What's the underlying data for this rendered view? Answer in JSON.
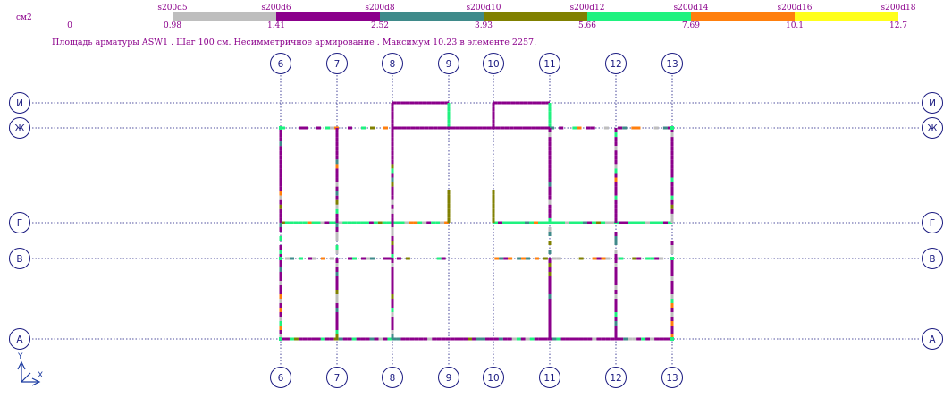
{
  "units_label": "см2",
  "legend": {
    "top_labels": [
      "s200d5",
      "s200d6",
      "s200d8",
      "s200d10",
      "s200d12",
      "s200d14",
      "s200d16",
      "s200d18"
    ],
    "bottom_labels": [
      "0",
      "0.98",
      "1.41",
      "2.52",
      "3.93",
      "5.66",
      "7.69",
      "10.1",
      "12.7"
    ],
    "colors": [
      "#bebebe",
      "#8b008b",
      "#3f8a8a",
      "#808000",
      "#1ff27f",
      "#ff7f0d",
      "#ffff1b"
    ],
    "label_color": "#8b008b"
  },
  "caption": "Площадь арматуры ASW1 . Шаг 100 см. Несимметричное армирование . Максимум 10.23 в элементе 2257.",
  "grid": {
    "columns": [
      "6",
      "7",
      "8",
      "9",
      "10",
      "11",
      "12",
      "13"
    ],
    "rows": [
      "И",
      "Ж",
      "Г",
      "В",
      "А"
    ],
    "bubble_color": "#1a1a80",
    "axis_line_color": "#1a1a80"
  },
  "coord_axes": {
    "x": "X",
    "y": "Y",
    "color": "#1a3aa0"
  }
}
